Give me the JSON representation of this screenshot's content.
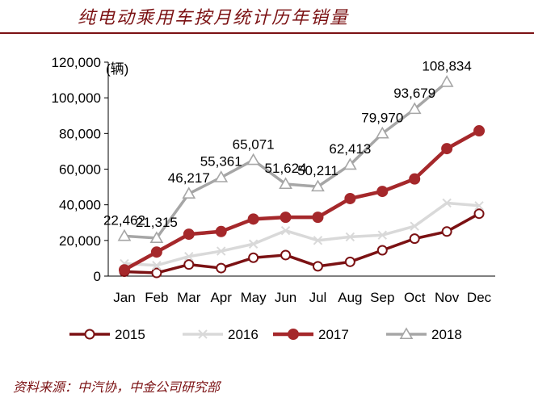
{
  "header": {
    "title": "纯电动乘用车按月统计历年销量"
  },
  "source": {
    "text": "资料来源：中汽协，中金公司研究部"
  },
  "chart_data": {
    "type": "line",
    "title": "纯电动乘用车按月统计历年销量",
    "ylabel": "(辆)",
    "xlabel": "",
    "ylim": [
      0,
      120000
    ],
    "yticks": [
      0,
      20000,
      40000,
      60000,
      80000,
      100000,
      120000
    ],
    "ytick_labels": [
      "0",
      "20,000",
      "40,000",
      "60,000",
      "80,000",
      "100,000",
      "120,000"
    ],
    "categories": [
      "Jan",
      "Feb",
      "Mar",
      "Apr",
      "May",
      "Jun",
      "Jul",
      "Aug",
      "Sep",
      "Oct",
      "Nov",
      "Dec"
    ],
    "grid": false,
    "legend": "bottom",
    "series": [
      {
        "name": "2015",
        "color": "#7b1113",
        "marker": "circle-open",
        "values": [
          2500,
          1800,
          6500,
          4500,
          10300,
          11800,
          5500,
          8000,
          14500,
          21000,
          25000,
          35000
        ]
      },
      {
        "name": "2016",
        "color": "#d9d9d9",
        "marker": "x",
        "values": [
          7000,
          6000,
          11000,
          14000,
          18000,
          25500,
          20000,
          22000,
          23000,
          28000,
          41000,
          39500
        ]
      },
      {
        "name": "2017",
        "color": "#a5282b",
        "marker": "circle-filled",
        "values": [
          3500,
          13500,
          23500,
          25000,
          32000,
          33000,
          33000,
          43500,
          47500,
          54500,
          71500,
          81500
        ]
      },
      {
        "name": "2018",
        "color": "#a6a6a6",
        "marker": "triangle-open",
        "values": [
          22462,
          21315,
          46217,
          55361,
          65071,
          51624,
          50211,
          62413,
          79970,
          93679,
          108834,
          null
        ],
        "labels": [
          "22,462",
          "21,315",
          "46,217",
          "55,361",
          "65,071",
          "51,624",
          "50,211",
          "62,413",
          "79,970",
          "93,679",
          "108,834",
          null
        ]
      }
    ]
  }
}
